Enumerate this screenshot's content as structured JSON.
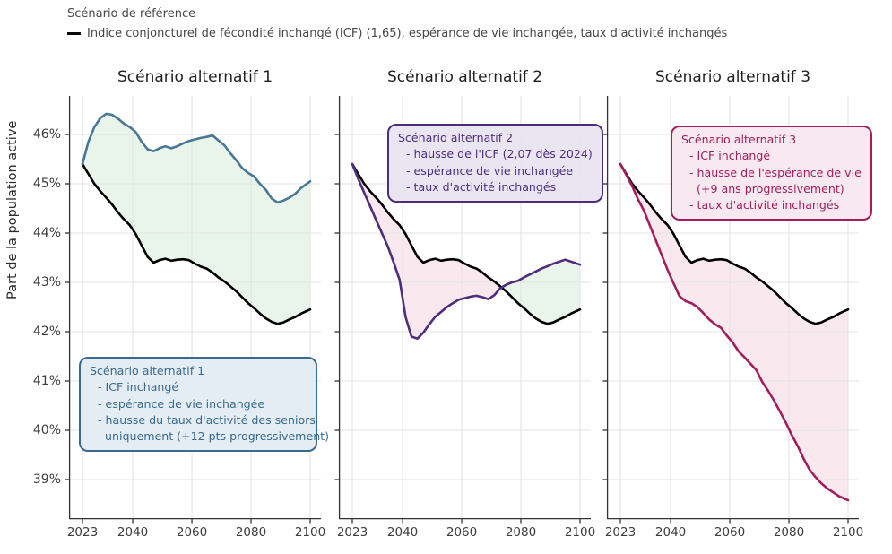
{
  "chart_data": {
    "type": "line",
    "legend_title": "Scénario de référence",
    "reference_label": "Indice conjoncturel de fécondité inchangé (ICF) (1,65), espérance de vie inchangée, taux d'activité inchangés",
    "ylabel": "Part de la population active",
    "ylim": [
      38.2,
      46.8
    ],
    "xlim": [
      2018.5,
      2103.5
    ],
    "grid": true,
    "yticks": [
      39,
      40,
      41,
      42,
      43,
      44,
      45,
      46
    ],
    "ytick_suffix": "%",
    "xticks": [
      2023,
      2040,
      2060,
      2080,
      2100
    ],
    "grid_color": "#e3e3e3",
    "axis_color": "#333333",
    "tick_label_color": "#3d3d3d",
    "fill_above_color": "#e9f4ea",
    "fill_below_color": "#f9e9ee",
    "x": [
      2023,
      2025,
      2027,
      2029,
      2031,
      2033,
      2035,
      2037,
      2039,
      2041,
      2043,
      2045,
      2047,
      2049,
      2051,
      2053,
      2055,
      2057,
      2059,
      2061,
      2063,
      2065,
      2067,
      2069,
      2071,
      2073,
      2075,
      2077,
      2079,
      2081,
      2083,
      2085,
      2087,
      2089,
      2091,
      2093,
      2095,
      2097,
      2100
    ],
    "reference": {
      "label": "Scénario de référence",
      "color": "#000000",
      "values": [
        45.4,
        45.2,
        45.0,
        44.85,
        44.72,
        44.58,
        44.42,
        44.28,
        44.16,
        43.98,
        43.75,
        43.52,
        43.4,
        43.45,
        43.48,
        43.44,
        43.46,
        43.47,
        43.45,
        43.38,
        43.32,
        43.28,
        43.2,
        43.1,
        43.02,
        42.92,
        42.82,
        42.7,
        42.58,
        42.48,
        42.37,
        42.27,
        42.2,
        42.16,
        42.19,
        42.25,
        42.3,
        42.37,
        42.45
      ]
    },
    "panels": [
      {
        "title": "Scénario alternatif 1",
        "color": "#4a7795",
        "values": [
          45.4,
          45.85,
          46.15,
          46.33,
          46.42,
          46.4,
          46.32,
          46.22,
          46.15,
          46.05,
          45.85,
          45.7,
          45.66,
          45.72,
          45.76,
          45.72,
          45.76,
          45.82,
          45.87,
          45.9,
          45.93,
          45.95,
          45.98,
          45.88,
          45.78,
          45.62,
          45.48,
          45.32,
          45.22,
          45.15,
          45.0,
          44.88,
          44.7,
          44.62,
          44.66,
          44.72,
          44.8,
          44.92,
          45.05
        ],
        "annotation": {
          "title": "Scénario alternatif 1",
          "lines": [
            "- ICF inchangé",
            "- espérance de vie inchangée",
            "- hausse du taux d'activité des seniors",
            "  uniquement (+12 pts progressivement)"
          ],
          "color": "#3a6a8e",
          "bg": "#e2ebf2"
        }
      },
      {
        "title": "Scénario alternatif 2",
        "color": "#4f2d7d",
        "values": [
          45.4,
          45.1,
          44.82,
          44.55,
          44.27,
          44.0,
          43.73,
          43.4,
          43.05,
          42.3,
          41.9,
          41.86,
          41.98,
          42.15,
          42.3,
          42.4,
          42.5,
          42.58,
          42.65,
          42.68,
          42.71,
          42.73,
          42.7,
          42.66,
          42.74,
          42.88,
          42.95,
          43.0,
          43.03,
          43.1,
          43.16,
          43.22,
          43.28,
          43.33,
          43.38,
          43.42,
          43.46,
          43.42,
          43.36
        ],
        "annotation": {
          "title": "Scénario alternatif 2",
          "lines": [
            "- hausse de l'ICF (2,07 dès 2024)",
            "- espérance de vie inchangée",
            "- taux d'activité inchangés"
          ],
          "color": "#4f2d7d",
          "bg": "#e8e4f0"
        }
      },
      {
        "title": "Scénario alternatif 3",
        "color": "#a21e5f",
        "values": [
          45.4,
          45.18,
          44.95,
          44.68,
          44.45,
          44.15,
          43.85,
          43.55,
          43.25,
          42.98,
          42.72,
          42.62,
          42.58,
          42.5,
          42.38,
          42.25,
          42.15,
          42.08,
          41.92,
          41.78,
          41.6,
          41.48,
          41.35,
          41.22,
          40.98,
          40.8,
          40.6,
          40.38,
          40.15,
          39.9,
          39.68,
          39.42,
          39.2,
          39.05,
          38.92,
          38.82,
          38.74,
          38.66,
          38.58
        ],
        "annotation": {
          "title": "Scénario alternatif 3",
          "lines": [
            "- ICF inchangé",
            "- hausse de l'espérance de vie",
            "  (+9 ans progressivement)",
            "- taux d'activité inchangés"
          ],
          "color": "#a21e5f",
          "bg": "#f7e6ee"
        }
      }
    ]
  }
}
